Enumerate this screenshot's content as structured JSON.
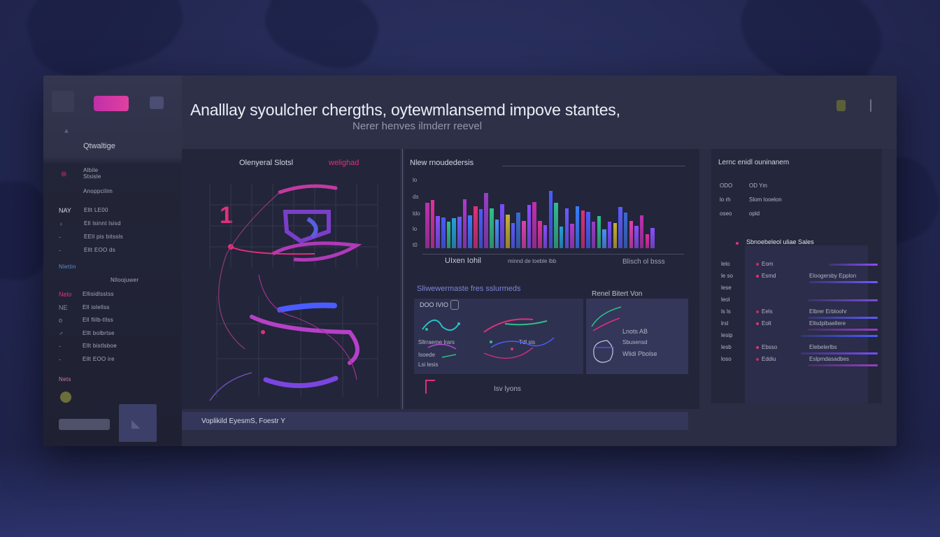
{
  "header": {
    "title": "Analllay syoulcher chergths, oytewmlansemd impove stantes,",
    "subtitle": "Nerer henves   ilmderr reevel"
  },
  "sidebar": {
    "section_label": "Qtwaltige",
    "top_items": [
      {
        "text": "Albile\nStsisle"
      },
      {
        "text": "Anoppcilim"
      }
    ],
    "list1": [
      {
        "marker": "NAY",
        "text": "Ellt  LE00"
      },
      {
        "marker": "♁",
        "text": "Ell lsinnt lsisd"
      },
      {
        "marker": "-",
        "text": "EEll pis bitssls"
      },
      {
        "marker": "-",
        "text": "Ellt  EOO ds"
      }
    ],
    "group2_label": "Nlettin",
    "group2_aside": "Nlloojuwer",
    "list2": [
      {
        "marker": "Nelo",
        "text": "Ellisidlsstss"
      },
      {
        "marker": "NE",
        "text": "Ell  iolellss"
      },
      {
        "marker": "o",
        "text": "Ell  fiilb-tllss"
      },
      {
        "marker": "♂",
        "text": "Ellt  bolbrtse"
      },
      {
        "marker": "-",
        "text": "Ellt  bistlsboe"
      },
      {
        "marker": "-",
        "text": "Ellt  EOO ire"
      }
    ],
    "footer_label": "Nets"
  },
  "panels": {
    "left": {
      "title": "Olenyeral Slotsl",
      "accent": "welighad",
      "number": "1"
    },
    "bar": {
      "title": "Nlew rnoudedersis",
      "y_ticks": [
        "lo",
        "ds",
        "ldo",
        "lo",
        "t0"
      ],
      "x_labels": [
        "UIxen  Iohil",
        "minnd de loeble lbb",
        "Blisch ol bsss"
      ]
    },
    "mid_bottom": {
      "title": "Sliwewermaste fres sslurmeds",
      "label_top": "DOO IVIO",
      "l1": "Sllrraeme lrars",
      "l2": "Isoede",
      "l3": "Lsi lesis",
      "l4": "Tdl sis",
      "footer": "Isv lyons"
    },
    "mini": {
      "title": "Renel Bitert Von",
      "l1": "Lnots AB",
      "l2": "Sbusensd",
      "l3": "Wlidi Pbolse"
    },
    "right": {
      "title": "Lernc enidl ouninanem",
      "head": [
        {
          "a": "ODO",
          "b": "OD Ym"
        },
        {
          "a": "lo rh",
          "b": "Slom Iooelon"
        },
        {
          "a": "oseo",
          "b": "opld"
        }
      ],
      "sub_title": "Sbnoebeleol  uliae Sales",
      "rows": [
        {
          "n": "lelo",
          "a": "Eom",
          "b": ""
        },
        {
          "n": "le so",
          "a": "Esmd",
          "b": "Eloogersby Epplon"
        },
        {
          "n": "lese",
          "a": "",
          "b": ""
        },
        {
          "n": "leol",
          "a": "",
          "b": ""
        },
        {
          "n": "ls ls",
          "a": "Eels",
          "b": "Elbrer  Erbloohr"
        },
        {
          "n": "lrsl",
          "a": "Eolt",
          "b": "Ellsdplbaellere"
        },
        {
          "n": "lesip",
          "a": "",
          "b": ""
        },
        {
          "n": "lesb",
          "a": "Ebsso",
          "b": "Elebelerlbs"
        },
        {
          "n": "loso",
          "a": "Eddiu",
          "b": "Eslpmdasadbes"
        }
      ]
    },
    "footer": {
      "text": "Voplikild EyesmS, Foestr Y"
    }
  },
  "colors": {
    "accent": "#e0307a",
    "purple": "#8a4dff",
    "blue": "#4a5cff"
  },
  "chart_data": {
    "type": "bar",
    "title": "Nlew rnoudedersis",
    "values": [
      6.8,
      7.2,
      4.8,
      4.6,
      4.0,
      4.5,
      4.7,
      7.3,
      4.9,
      6.2,
      5.8,
      8.2,
      5.9,
      4.3,
      6.6,
      5.0,
      3.8,
      5.3,
      4.1,
      6.5,
      6.9,
      4.1,
      3.4,
      8.5,
      6.8,
      3.2,
      5.9,
      3.6,
      6.3,
      5.6,
      5.4,
      4.0,
      4.8,
      2.8,
      4.0,
      3.7,
      6.1,
      5.3,
      4.1,
      3.3,
      4.9,
      2.1,
      3.0
    ],
    "ylim": [
      0,
      10
    ]
  }
}
